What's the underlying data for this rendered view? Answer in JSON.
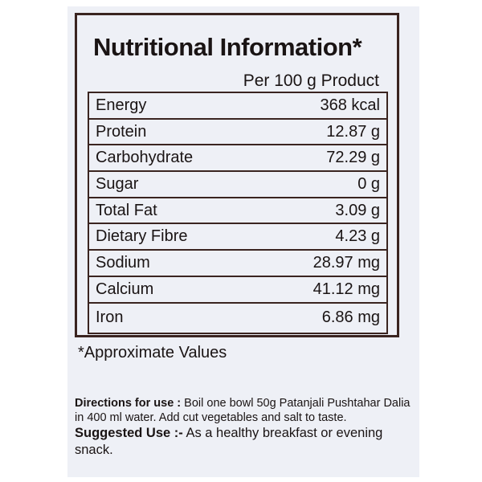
{
  "title": "Nutritional Information*",
  "per": "Per 100 g Product",
  "rows": [
    {
      "name": "Energy",
      "value": "368 kcal"
    },
    {
      "name": "Protein",
      "value": "12.87 g"
    },
    {
      "name": "Carbohydrate",
      "value": "72.29 g"
    },
    {
      "name": "Sugar",
      "value": "0 g"
    },
    {
      "name": "Total Fat",
      "value": "3.09 g"
    },
    {
      "name": "Dietary Fibre",
      "value": "4.23 g"
    },
    {
      "name": "Sodium",
      "value": "28.97 mg"
    },
    {
      "name": "Calcium",
      "value": "41.12 mg"
    },
    {
      "name": "Iron",
      "value": "6.86 mg"
    }
  ],
  "note": "*Approximate Values",
  "directions": {
    "label": "Directions for use :",
    "text": " Boil one bowl 50g Patanjali Pushtahar Dalia in 400 ml water. Add cut vegetables and salt to taste."
  },
  "suggested": {
    "label": "Suggested Use :-",
    "text": " As a healthy breakfast or evening snack."
  }
}
